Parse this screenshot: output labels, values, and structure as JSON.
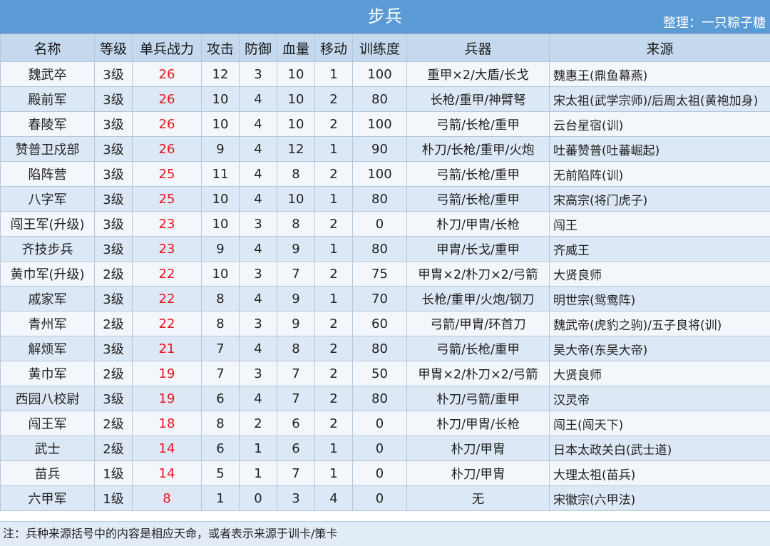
{
  "title": "步兵",
  "credit": "整理：一只粽子糖",
  "headers": [
    "名称",
    "等级",
    "单兵战力",
    "攻击",
    "防御",
    "血量",
    "移动",
    "训练度",
    "兵器",
    "来源"
  ],
  "rows": [
    [
      "魏武卒",
      "3级",
      "26",
      "12",
      "3",
      "10",
      "1",
      "100",
      "重甲×2/大盾/长戈",
      "魏惠王(鼎鱼幕燕)"
    ],
    [
      "殿前军",
      "3级",
      "26",
      "10",
      "4",
      "10",
      "2",
      "80",
      "长枪/重甲/神臂弩",
      "宋太祖(武学宗师)/后周太祖(黄袍加身)"
    ],
    [
      "春陵军",
      "3级",
      "26",
      "10",
      "4",
      "10",
      "2",
      "100",
      "弓箭/长枪/重甲",
      "云台星宿(训)"
    ],
    [
      "赞普卫戍部",
      "3级",
      "26",
      "9",
      "4",
      "12",
      "1",
      "90",
      "朴刀/长枪/重甲/火炮",
      "吐蕃赞普(吐蕃崛起)"
    ],
    [
      "陷阵营",
      "3级",
      "25",
      "11",
      "4",
      "8",
      "2",
      "100",
      "弓箭/长枪/重甲",
      "无前陷阵(训)"
    ],
    [
      "八字军",
      "3级",
      "25",
      "10",
      "4",
      "10",
      "1",
      "80",
      "弓箭/长枪/重甲",
      "宋高宗(将门虎子)"
    ],
    [
      "闯王军(升级)",
      "3级",
      "23",
      "10",
      "3",
      "8",
      "2",
      "0",
      "朴刀/甲胄/长枪",
      "闯王"
    ],
    [
      "齐技步兵",
      "3级",
      "23",
      "9",
      "4",
      "9",
      "1",
      "80",
      "甲胄/长戈/重甲",
      "齐威王"
    ],
    [
      "黄巾军(升级)",
      "2级",
      "22",
      "10",
      "3",
      "7",
      "2",
      "75",
      "甲胄×2/朴刀×2/弓箭",
      "大贤良师"
    ],
    [
      "戚家军",
      "3级",
      "22",
      "8",
      "4",
      "9",
      "1",
      "70",
      "长枪/重甲/火炮/钢刀",
      "明世宗(鸳鸯阵)"
    ],
    [
      "青州军",
      "2级",
      "22",
      "8",
      "3",
      "9",
      "2",
      "60",
      "弓箭/甲胄/环首刀",
      "魏武帝(虎豹之驹)/五子良将(训)"
    ],
    [
      "解烦军",
      "3级",
      "21",
      "7",
      "4",
      "8",
      "2",
      "80",
      "弓箭/长枪/重甲",
      "吴大帝(东吴大帝)"
    ],
    [
      "黄巾军",
      "2级",
      "19",
      "7",
      "3",
      "7",
      "2",
      "50",
      "甲胄×2/朴刀×2/弓箭",
      "大贤良师"
    ],
    [
      "西园八校尉",
      "3级",
      "19",
      "6",
      "4",
      "7",
      "2",
      "80",
      "朴刀/弓箭/重甲",
      "汉灵帝"
    ],
    [
      "闯王军",
      "2级",
      "18",
      "8",
      "2",
      "6",
      "2",
      "0",
      "朴刀/甲胄/长枪",
      "闯王(闯天下)"
    ],
    [
      "武士",
      "2级",
      "14",
      "6",
      "1",
      "6",
      "1",
      "0",
      "朴刀/甲胄",
      "日本太政关白(武士道)"
    ],
    [
      "苗兵",
      "1级",
      "14",
      "5",
      "1",
      "7",
      "1",
      "0",
      "朴刀/甲胄",
      "大理太祖(苗兵)"
    ],
    [
      "六甲军",
      "1级",
      "8",
      "1",
      "0",
      "3",
      "4",
      "0",
      "无",
      "宋徽宗(六甲法)"
    ]
  ],
  "note": "注：兵种来源括号中的内容是相应天命，或者表示来源于训卡/策卡",
  "colors": {
    "title_bg": "#5b9bd5",
    "header_bg": "#c4d8ee",
    "row_light": "#f3f6fb",
    "row_dark": "#dde8f6",
    "power_text": "#e8141e"
  }
}
